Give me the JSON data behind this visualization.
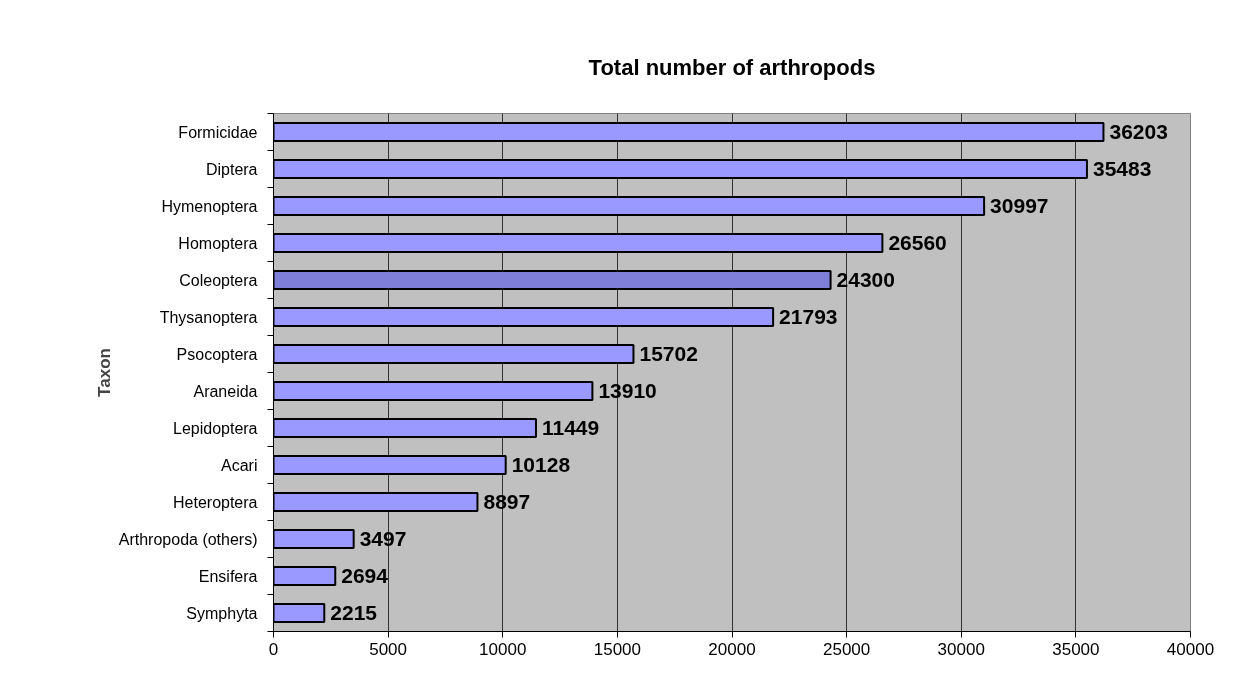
{
  "chart_data": {
    "type": "bar",
    "orientation": "horizontal",
    "title": "Total number of arthropods",
    "ylabel": "Taxon",
    "categories": [
      "Formicidae",
      "Diptera",
      "Hymenoptera",
      "Homoptera",
      "Coleoptera",
      "Thysanoptera",
      "Psocoptera",
      "Araneida",
      "Lepidoptera",
      "Acari",
      "Heteroptera",
      "Arthropoda (others)",
      "Ensifera",
      "Symphyta"
    ],
    "values": [
      36203,
      35483,
      30997,
      26560,
      24300,
      21793,
      15702,
      13910,
      11449,
      10128,
      8897,
      3497,
      2694,
      2215
    ],
    "colors": [
      "#9999ff",
      "#9999ff",
      "#9999ff",
      "#9999ff",
      "#7f7fd9",
      "#9999ff",
      "#9999ff",
      "#9999ff",
      "#9999ff",
      "#9999ff",
      "#9999ff",
      "#9999ff",
      "#9999ff",
      "#9999ff"
    ],
    "xlim": [
      0,
      40000
    ],
    "xticks": [
      0,
      5000,
      10000,
      15000,
      20000,
      25000,
      30000,
      35000,
      40000
    ],
    "grid": "x",
    "data_labels": true
  }
}
